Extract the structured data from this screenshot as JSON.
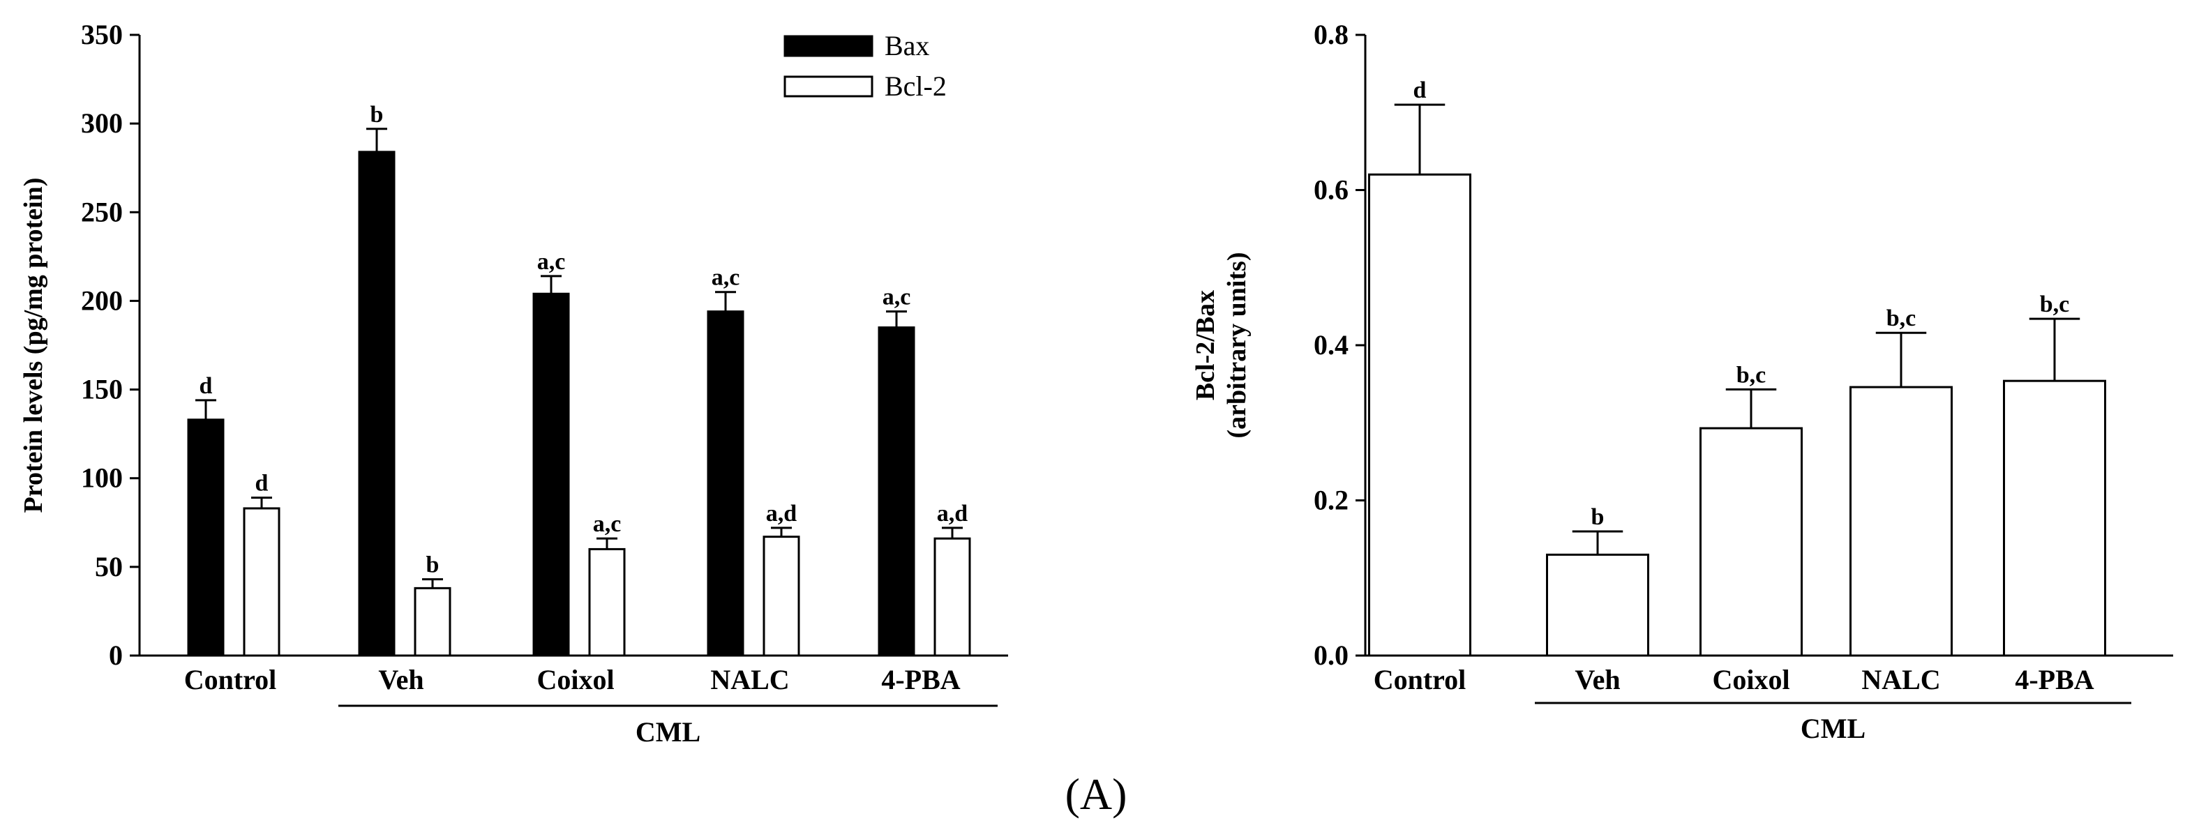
{
  "panel_label": "(A)",
  "chart_data": [
    {
      "type": "bar",
      "title": "",
      "xlabel": "",
      "ylabel": "Protein levels (pg/mg protein)",
      "ylim": [
        0,
        350
      ],
      "yticks": [
        "0",
        "50",
        "100",
        "150",
        "200",
        "250",
        "300",
        "350"
      ],
      "categories": [
        "Control",
        "Veh",
        "Coixol",
        "NALC",
        "4-PBA"
      ],
      "group_label": "CML",
      "group_span": [
        "Veh",
        "4-PBA"
      ],
      "legend": [
        "Bax",
        "Bcl-2"
      ],
      "legend_position": "top-right",
      "series": [
        {
          "name": "Bax",
          "color": "#000000",
          "values": [
            133,
            284,
            204,
            194,
            185
          ],
          "errors": [
            11,
            13,
            10,
            11,
            9
          ],
          "labels": [
            "d",
            "b",
            "a,c",
            "a,c",
            "a,c"
          ]
        },
        {
          "name": "Bcl-2",
          "color": "#ffffff",
          "values": [
            83,
            38,
            60,
            67,
            66
          ],
          "errors": [
            6,
            5,
            6,
            5,
            6
          ],
          "labels": [
            "d",
            "b",
            "a,c",
            "a,d",
            "a,d"
          ]
        }
      ]
    },
    {
      "type": "bar",
      "title": "",
      "xlabel": "",
      "ylabel": [
        "Bcl-2/Bax",
        "(arbitrary units)"
      ],
      "ylim": [
        0,
        0.8
      ],
      "yticks": [
        "0.0",
        "0.2",
        "0.4",
        "0.6",
        "0.8"
      ],
      "categories": [
        "Control",
        "Veh",
        "Coixol",
        "NALC",
        "4-PBA"
      ],
      "group_label": "CML",
      "group_span": [
        "Veh",
        "4-PBA"
      ],
      "series": [
        {
          "name": "Bcl-2/Bax",
          "color": "#ffffff",
          "values": [
            0.62,
            0.13,
            0.293,
            0.346,
            0.354
          ],
          "errors": [
            0.09,
            0.03,
            0.05,
            0.07,
            0.08
          ],
          "labels": [
            "d",
            "b",
            "b,c",
            "b,c",
            "b,c"
          ]
        }
      ]
    }
  ]
}
